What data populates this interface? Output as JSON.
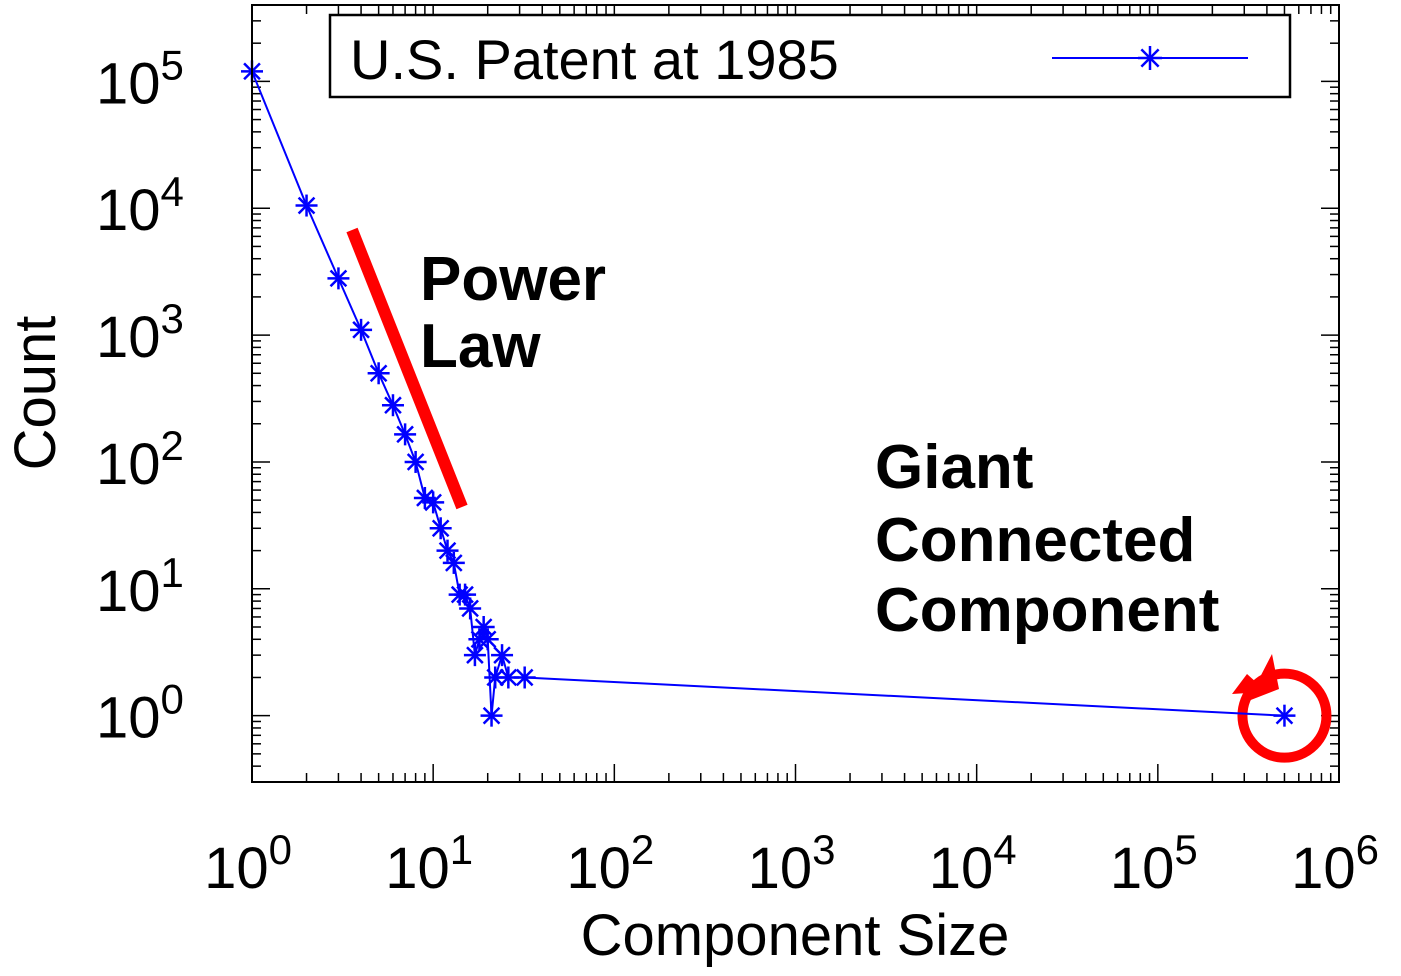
{
  "chart_data": {
    "type": "line",
    "scale": {
      "x": "log",
      "y": "log"
    },
    "xlabel": "Component Size",
    "ylabel": "Count",
    "xlim": [
      1,
      1000000
    ],
    "ylim": [
      0.3,
      400000
    ],
    "grid": false,
    "legend": {
      "position": "top-right",
      "boxed": true
    },
    "x_tick_labels": [
      {
        "value": 1,
        "base": "10",
        "exp": "0"
      },
      {
        "value": 10,
        "base": "10",
        "exp": "1"
      },
      {
        "value": 100,
        "base": "10",
        "exp": "2"
      },
      {
        "value": 1000,
        "base": "10",
        "exp": "3"
      },
      {
        "value": 10000,
        "base": "10",
        "exp": "4"
      },
      {
        "value": 100000,
        "base": "10",
        "exp": "5"
      },
      {
        "value": 1000000,
        "base": "10",
        "exp": "6"
      }
    ],
    "y_tick_labels": [
      {
        "value": 1,
        "base": "10",
        "exp": "0"
      },
      {
        "value": 10,
        "base": "10",
        "exp": "1"
      },
      {
        "value": 100,
        "base": "10",
        "exp": "2"
      },
      {
        "value": 1000,
        "base": "10",
        "exp": "3"
      },
      {
        "value": 10000,
        "base": "10",
        "exp": "4"
      },
      {
        "value": 100000,
        "base": "10",
        "exp": "5"
      }
    ],
    "series": [
      {
        "name": "U.S. Patent at 1985",
        "color": "#0000ff",
        "marker": "asterisk",
        "points": [
          [
            1,
            120000
          ],
          [
            2,
            10500
          ],
          [
            3,
            2800
          ],
          [
            4,
            1100
          ],
          [
            5,
            500
          ],
          [
            6,
            280
          ],
          [
            7,
            165
          ],
          [
            8,
            100
          ],
          [
            9,
            52
          ],
          [
            10,
            48
          ],
          [
            11,
            30
          ],
          [
            12,
            20
          ],
          [
            13,
            16
          ],
          [
            14,
            9
          ],
          [
            15,
            9
          ],
          [
            16,
            7
          ],
          [
            17,
            3
          ],
          [
            18,
            4
          ],
          [
            19,
            5
          ],
          [
            20,
            4
          ],
          [
            21,
            1
          ],
          [
            22,
            2
          ],
          [
            24,
            3
          ],
          [
            26,
            2
          ],
          [
            32,
            2
          ],
          [
            500000,
            1
          ]
        ]
      }
    ],
    "annotations": [
      {
        "text_lines": [
          "Power",
          "Law"
        ],
        "color": "#000000"
      },
      {
        "text_lines": [
          "Giant",
          "Connected",
          "Component"
        ],
        "color": "#000000"
      }
    ],
    "highlight_color": "#ff0000"
  }
}
